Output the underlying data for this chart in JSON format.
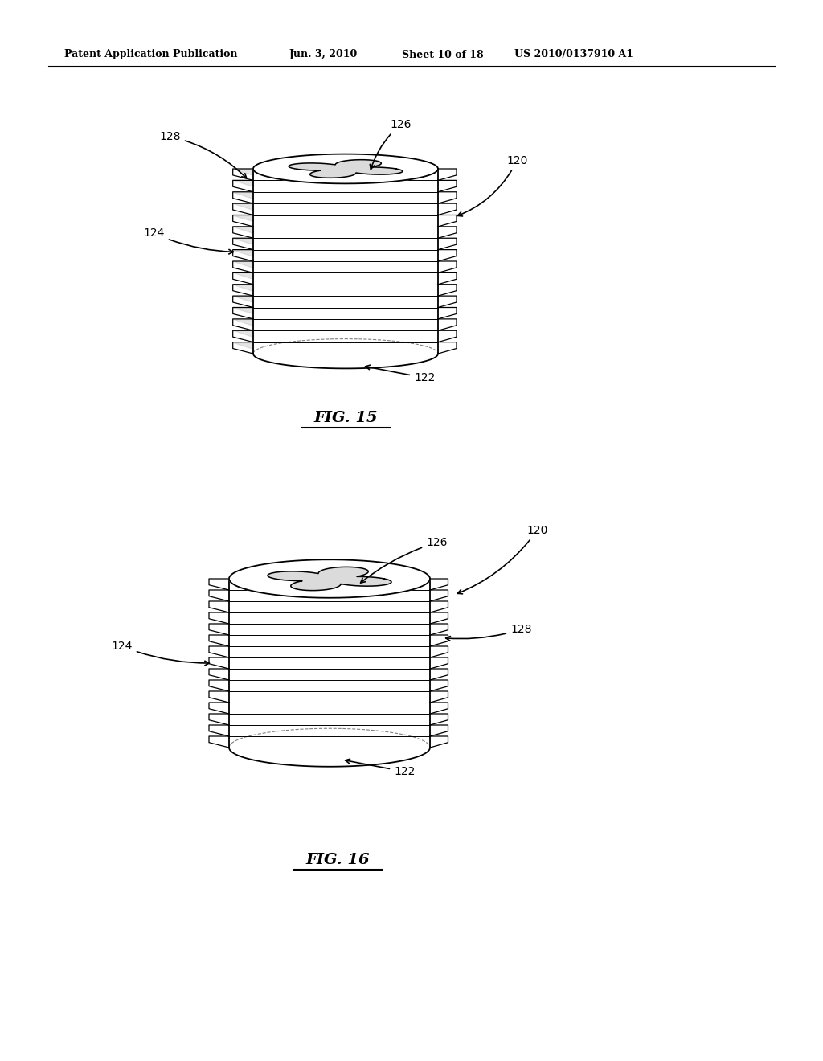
{
  "bg_color": "#ffffff",
  "header_text": "Patent Application Publication",
  "header_date": "Jun. 3, 2010",
  "header_sheet": "Sheet 10 of 18",
  "header_patent": "US 2010/0137910 A1",
  "fig15_label": "FIG. 15",
  "fig16_label": "FIG. 16",
  "text_color": "#000000",
  "line_color": "#000000"
}
